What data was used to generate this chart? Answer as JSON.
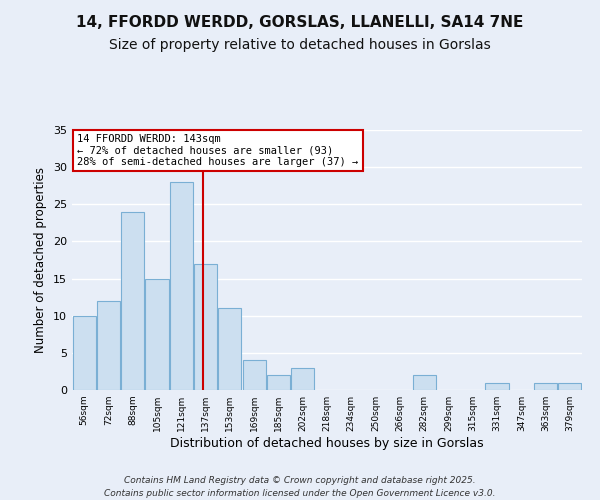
{
  "title": "14, FFORDD WERDD, GORSLAS, LLANELLI, SA14 7NE",
  "subtitle": "Size of property relative to detached houses in Gorslas",
  "xlabel": "Distribution of detached houses by size in Gorslas",
  "ylabel": "Number of detached properties",
  "bar_color": "#ccdff0",
  "bar_edge_color": "#7aafd4",
  "background_color": "#e8eef8",
  "grid_color": "#ffffff",
  "bin_labels": [
    "56sqm",
    "72sqm",
    "88sqm",
    "105sqm",
    "121sqm",
    "137sqm",
    "153sqm",
    "169sqm",
    "185sqm",
    "202sqm",
    "218sqm",
    "234sqm",
    "250sqm",
    "266sqm",
    "282sqm",
    "299sqm",
    "315sqm",
    "331sqm",
    "347sqm",
    "363sqm",
    "379sqm"
  ],
  "bin_edges": [
    56,
    72,
    88,
    105,
    121,
    137,
    153,
    169,
    185,
    202,
    218,
    234,
    250,
    266,
    282,
    299,
    315,
    331,
    347,
    363,
    379,
    395
  ],
  "counts": [
    10,
    12,
    24,
    15,
    28,
    17,
    11,
    4,
    2,
    3,
    0,
    0,
    0,
    0,
    2,
    0,
    0,
    1,
    0,
    1,
    1
  ],
  "property_size": 143,
  "vline_color": "#cc0000",
  "annotation_line1": "14 FFORDD WERDD: 143sqm",
  "annotation_line2": "← 72% of detached houses are smaller (93)",
  "annotation_line3": "28% of semi-detached houses are larger (37) →",
  "annotation_box_color": "#ffffff",
  "annotation_box_edge_color": "#cc0000",
  "ylim": [
    0,
    35
  ],
  "yticks": [
    0,
    5,
    10,
    15,
    20,
    25,
    30,
    35
  ],
  "footer_line1": "Contains HM Land Registry data © Crown copyright and database right 2025.",
  "footer_line2": "Contains public sector information licensed under the Open Government Licence v3.0.",
  "title_fontsize": 11,
  "subtitle_fontsize": 10
}
